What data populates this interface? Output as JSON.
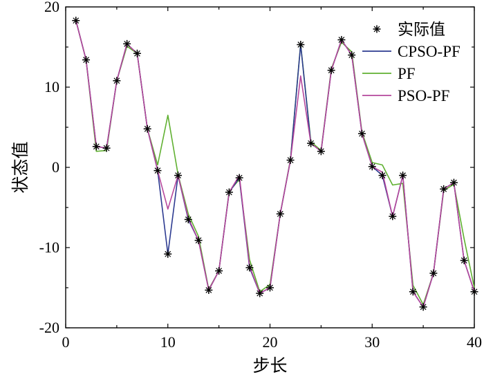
{
  "chart_data": {
    "type": "line",
    "title": "",
    "xlabel": "步长",
    "ylabel": "状态值",
    "xlim": [
      0,
      40
    ],
    "ylim": [
      -20,
      20
    ],
    "xticks": [
      0,
      10,
      20,
      30,
      40
    ],
    "yticks": [
      -20,
      -10,
      0,
      10,
      20
    ],
    "xtick_labels": [
      "0",
      "10",
      "20",
      "30",
      "40"
    ],
    "ytick_labels": [
      "-20",
      "-10",
      "0",
      "10",
      "20"
    ],
    "grid": false,
    "legend_position": "top-right",
    "x": [
      1,
      2,
      3,
      4,
      5,
      6,
      7,
      8,
      9,
      10,
      11,
      12,
      13,
      14,
      15,
      16,
      17,
      18,
      19,
      20,
      21,
      22,
      23,
      24,
      25,
      26,
      27,
      28,
      29,
      30,
      31,
      32,
      33,
      34,
      35,
      36,
      37,
      38,
      39,
      40
    ],
    "series": [
      {
        "name": "实际值",
        "style": "marker",
        "color": "#000000",
        "values": [
          18.3,
          13.4,
          2.6,
          2.4,
          10.8,
          15.4,
          14.2,
          4.8,
          -0.4,
          -10.8,
          -1.0,
          -6.5,
          -9.1,
          -15.3,
          -12.9,
          -3.1,
          -1.3,
          -12.5,
          -15.7,
          -15.0,
          -5.8,
          0.9,
          15.3,
          3.0,
          2.0,
          12.1,
          15.9,
          14.0,
          4.2,
          0.1,
          -1.0,
          -6.1,
          -1.0,
          -15.5,
          -17.4,
          -13.2,
          -2.7,
          -1.9,
          -11.6,
          -15.5
        ]
      },
      {
        "name": "CPSO-PF",
        "style": "line",
        "color": "#2b3990",
        "values": [
          18.3,
          13.4,
          2.6,
          2.4,
          10.8,
          15.4,
          14.2,
          4.8,
          -0.4,
          -10.8,
          -1.0,
          -6.5,
          -9.1,
          -15.3,
          -12.9,
          -3.1,
          -1.3,
          -12.5,
          -15.7,
          -15.0,
          -5.8,
          0.9,
          15.3,
          3.0,
          2.0,
          12.1,
          15.9,
          14.0,
          4.2,
          0.1,
          -1.0,
          -6.1,
          -1.0,
          -15.5,
          -17.4,
          -13.2,
          -2.7,
          -1.9,
          -11.6,
          -15.5
        ]
      },
      {
        "name": "PF",
        "style": "line",
        "color": "#5fb030",
        "values": [
          18.3,
          13.4,
          2.0,
          2.1,
          10.8,
          15.1,
          14.2,
          4.8,
          0.3,
          6.5,
          -0.9,
          -5.8,
          -8.6,
          -15.2,
          -12.9,
          -3.0,
          -1.5,
          -11.5,
          -15.5,
          -14.6,
          -5.8,
          1.0,
          15.4,
          3.2,
          2.1,
          12.3,
          15.6,
          14.4,
          4.4,
          0.6,
          0.3,
          -2.2,
          -2.0,
          -14.7,
          -17.1,
          -13.2,
          -2.9,
          -2.1,
          -8.9,
          -15.0
        ]
      },
      {
        "name": "PSO-PF",
        "style": "line",
        "color": "#b5479c",
        "values": [
          18.3,
          13.4,
          2.6,
          2.4,
          10.8,
          15.4,
          14.2,
          4.8,
          -0.4,
          -5.2,
          -1.0,
          -6.3,
          -9.1,
          -15.3,
          -12.9,
          -3.1,
          -1.0,
          -12.3,
          -15.7,
          -15.0,
          -5.8,
          0.9,
          11.4,
          3.0,
          2.0,
          12.1,
          15.9,
          14.0,
          4.2,
          0.1,
          -0.6,
          -6.1,
          -1.0,
          -15.5,
          -17.4,
          -13.2,
          -2.7,
          -1.9,
          -11.6,
          -15.5
        ]
      }
    ]
  }
}
